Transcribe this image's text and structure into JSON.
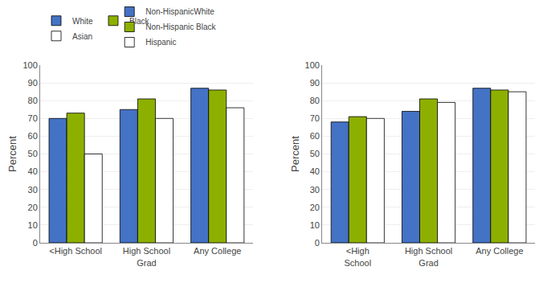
{
  "chart_data": [
    {
      "type": "bar",
      "categories": [
        "<High School",
        "High School\nGrad",
        "Any College"
      ],
      "series": [
        {
          "name": "White",
          "color": "#4472C4",
          "values": [
            70,
            75,
            87
          ]
        },
        {
          "name": "Black",
          "color": "#8DB000",
          "values": [
            73,
            81,
            86
          ]
        },
        {
          "name": "Asian",
          "color": "#FFFFFF",
          "values": [
            50,
            70,
            76
          ]
        }
      ],
      "y_label": "Percent",
      "ylim": [
        0,
        100
      ],
      "yticks": [
        0,
        10,
        20,
        30,
        40,
        50,
        60,
        70,
        80,
        90,
        100
      ],
      "grid": true,
      "legend": "top"
    },
    {
      "type": "bar",
      "categories": [
        "<High\nSchool",
        "High School\nGrad",
        "Any College"
      ],
      "series": [
        {
          "name": "Non-HispanicWhite",
          "color": "#4472C4",
          "values": [
            68,
            74,
            87
          ]
        },
        {
          "name": "Non-Hispanic Black",
          "color": "#8DB000",
          "values": [
            71,
            81,
            86
          ]
        },
        {
          "name": "Hispanic",
          "color": "#FFFFFF",
          "values": [
            70,
            79,
            85
          ]
        }
      ],
      "y_label": "Percent",
      "ylim": [
        0,
        100
      ],
      "yticks": [
        0,
        10,
        20,
        30,
        40,
        50,
        60,
        70,
        80,
        90,
        100
      ],
      "grid": true,
      "legend": "top"
    }
  ]
}
